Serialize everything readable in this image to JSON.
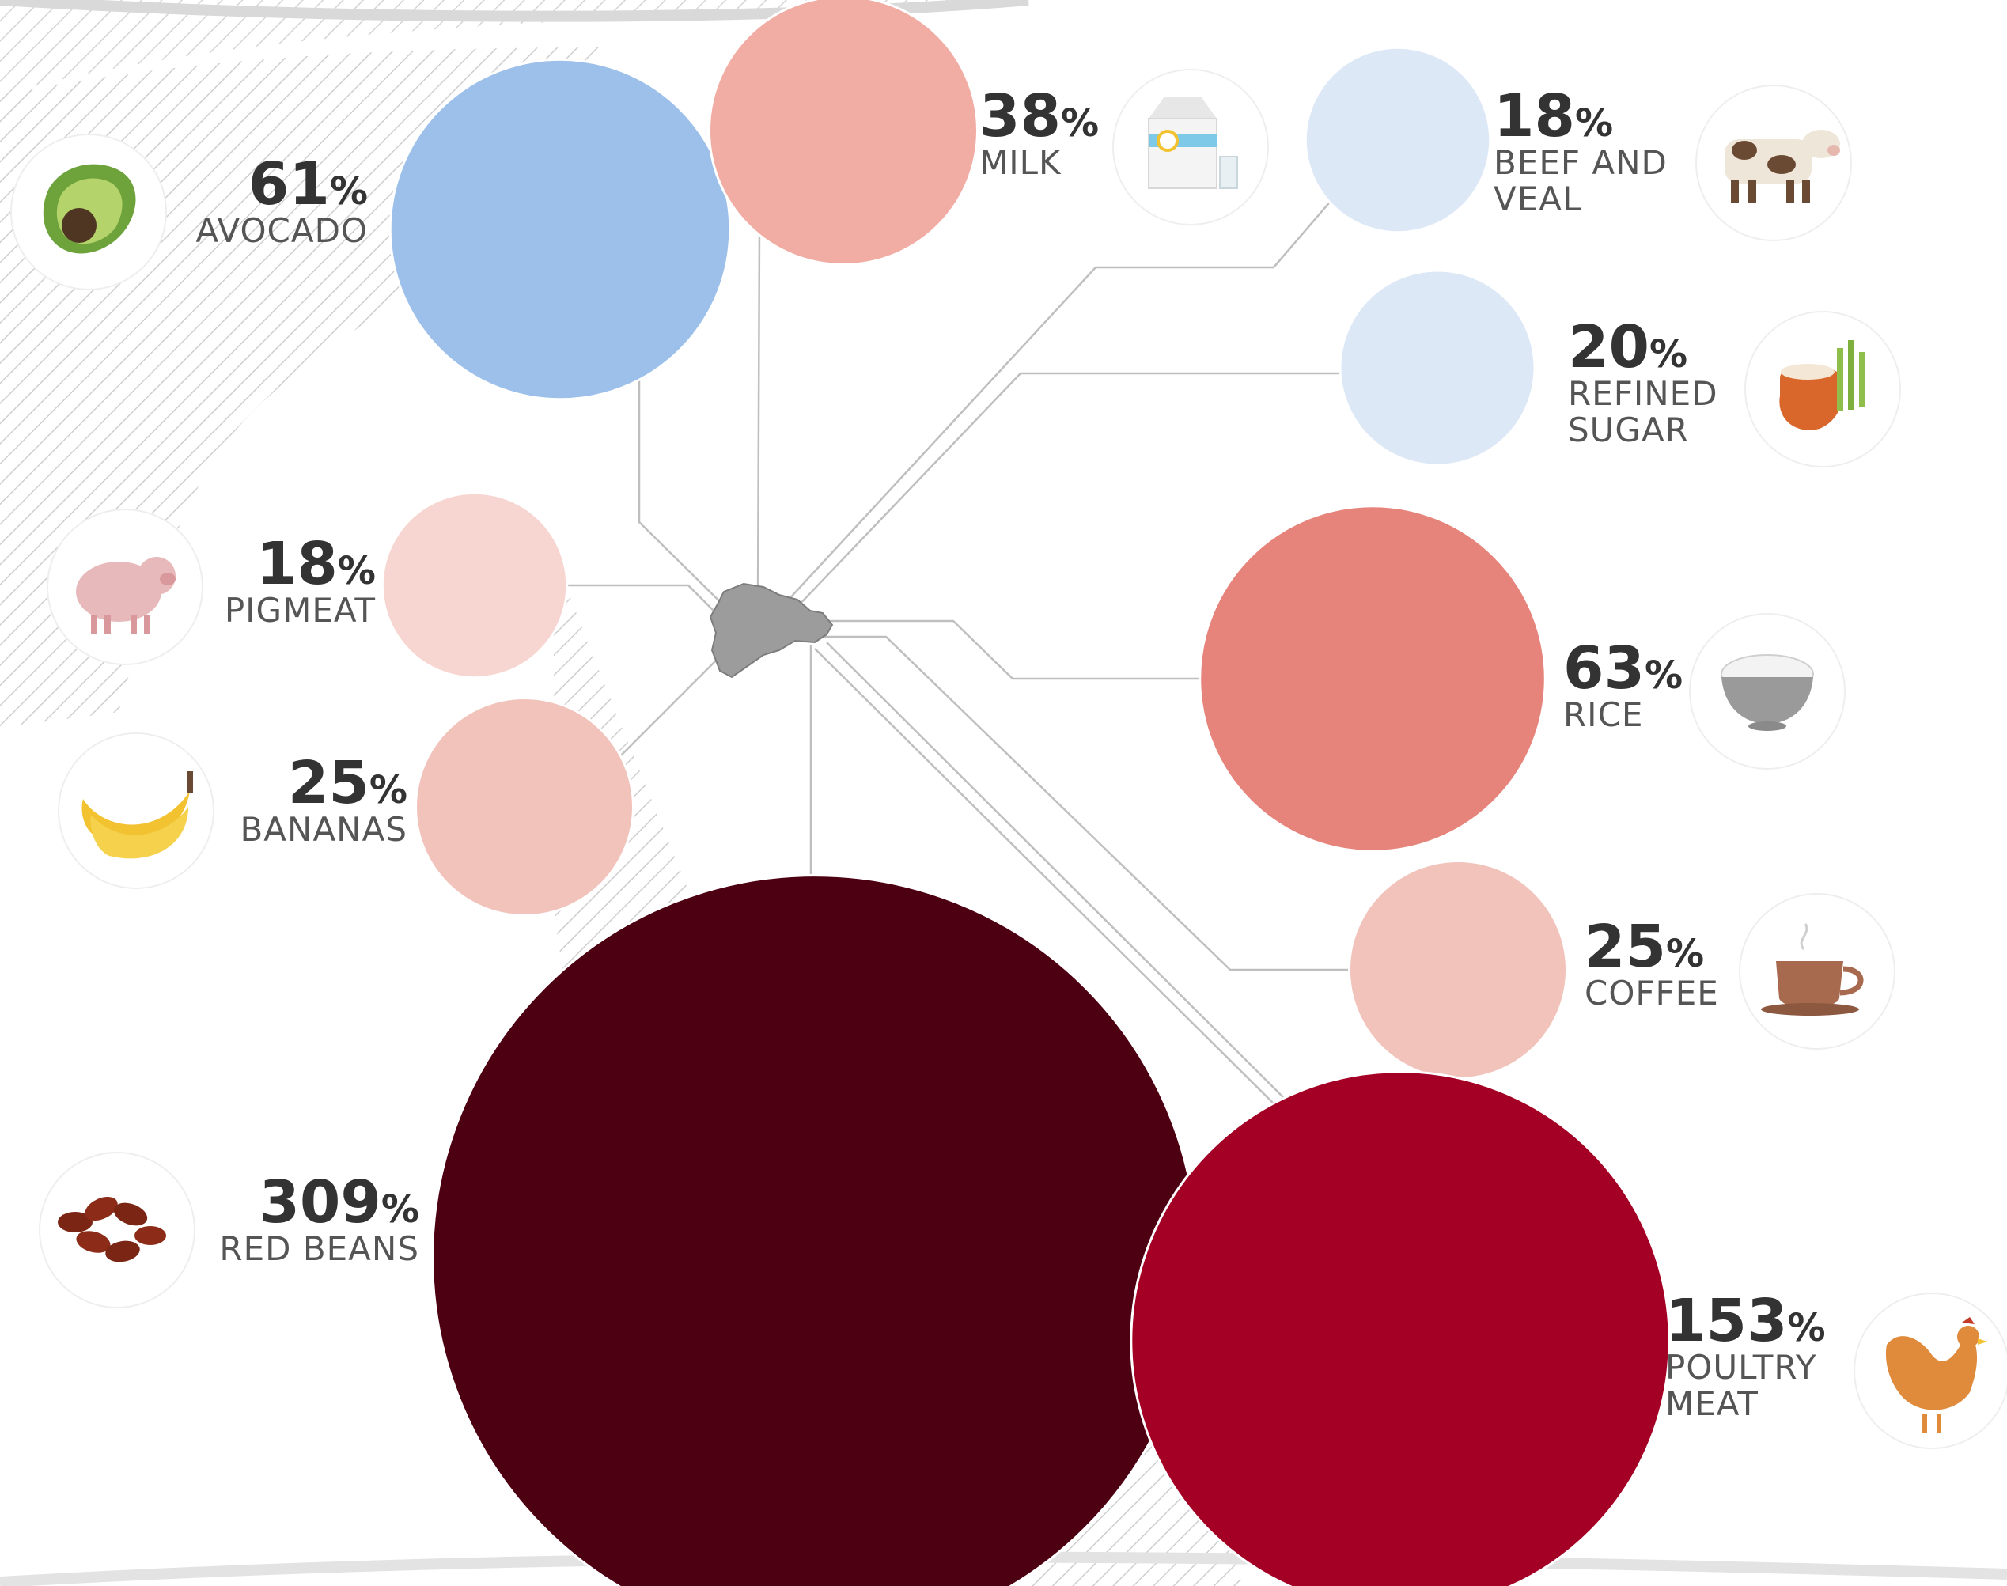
{
  "chart_data": {
    "type": "bubble",
    "percent_sign": "%",
    "items": [
      {
        "key": "avocado",
        "value": 61,
        "value_text": "61",
        "label_lines": [
          "AVOCADO"
        ],
        "color": "#9cc0e9",
        "icon": "avocado-icon"
      },
      {
        "key": "milk",
        "value": 38,
        "value_text": "38",
        "label_lines": [
          "MILK"
        ],
        "color": "#f1aca3",
        "icon": "milk-carton-icon"
      },
      {
        "key": "beef-and-veal",
        "value": 18,
        "value_text": "18",
        "label_lines": [
          "BEEF AND",
          "VEAL"
        ],
        "color": "#dde8f7",
        "icon": "cow-icon"
      },
      {
        "key": "refined-sugar",
        "value": 20,
        "value_text": "20",
        "label_lines": [
          "REFINED",
          "SUGAR"
        ],
        "color": "#dde8f7",
        "icon": "sugar-pot-icon"
      },
      {
        "key": "pigmeat",
        "value": 18,
        "value_text": "18",
        "label_lines": [
          "PIGMEAT"
        ],
        "color": "#f7d6d2",
        "icon": "pig-icon"
      },
      {
        "key": "bananas",
        "value": 25,
        "value_text": "25",
        "label_lines": [
          "BANANAS"
        ],
        "color": "#f2c3bb",
        "icon": "banana-icon"
      },
      {
        "key": "rice",
        "value": 63,
        "value_text": "63",
        "label_lines": [
          "RICE"
        ],
        "color": "#e6837a",
        "icon": "rice-bowl-icon"
      },
      {
        "key": "coffee",
        "value": 25,
        "value_text": "25",
        "label_lines": [
          "COFFEE"
        ],
        "color": "#f2c3bb",
        "icon": "coffee-cup-icon"
      },
      {
        "key": "red-beans",
        "value": 309,
        "value_text": "309",
        "label_lines": [
          "RED BEANS"
        ],
        "color": "#4d0011",
        "icon": "red-beans-icon"
      },
      {
        "key": "poultry-meat",
        "value": 153,
        "value_text": "153",
        "label_lines": [
          "POULTRY",
          "MEAT"
        ],
        "color": "#a40025",
        "icon": "chicken-icon"
      }
    ]
  }
}
